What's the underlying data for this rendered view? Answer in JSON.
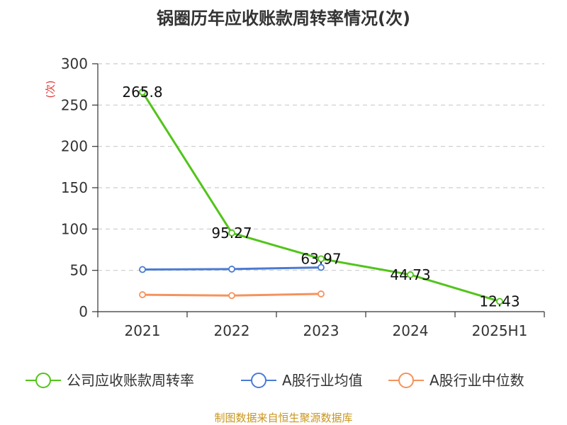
{
  "chart_data": {
    "type": "line",
    "title": "锅圈历年应收账款周转率情况(次)",
    "ylabel": "(次)",
    "xlabel": "",
    "categories": [
      "2021",
      "2022",
      "2023",
      "2024",
      "2025H1"
    ],
    "ylim": [
      0,
      300
    ],
    "yticks": [
      0,
      50,
      100,
      150,
      200,
      250,
      300
    ],
    "grid": true,
    "legend_position": "bottom",
    "series": [
      {
        "name": "公司应收账款周转率",
        "color": "#52c41a",
        "values": [
          265.8,
          95.27,
          63.97,
          44.73,
          12.43
        ],
        "labels": [
          "265.8",
          "95.27",
          "63.97",
          "44.73",
          "12.43"
        ]
      },
      {
        "name": "A股行业均值",
        "color": "#4a7bd4",
        "values": [
          51,
          51.5,
          53.5,
          null,
          null
        ]
      },
      {
        "name": "A股行业中位数",
        "color": "#f4935c",
        "values": [
          20.5,
          19.5,
          21.5,
          null,
          null
        ]
      }
    ]
  },
  "source": "制图数据来自恒生聚源数据库"
}
